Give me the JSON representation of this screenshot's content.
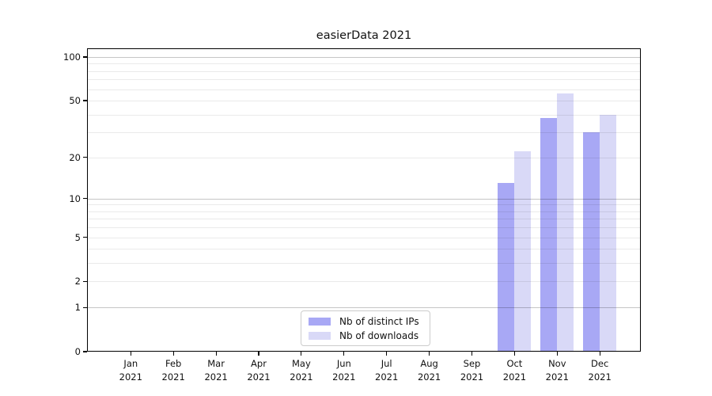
{
  "title": "easierData 2021",
  "chart_data": {
    "type": "bar",
    "title": "easierData 2021",
    "categories": [
      "Jan 2021",
      "Feb 2021",
      "Mar 2021",
      "Apr 2021",
      "May 2021",
      "Jun 2021",
      "Jul 2021",
      "Aug 2021",
      "Sep 2021",
      "Oct 2021",
      "Nov 2021",
      "Dec 2021"
    ],
    "series": [
      {
        "name": "Nb of distinct IPs",
        "color": "#a8a8f5",
        "values": [
          null,
          null,
          null,
          null,
          null,
          null,
          null,
          null,
          null,
          13,
          38,
          30
        ]
      },
      {
        "name": "Nb of downloads",
        "color": "#d9d9f7",
        "values": [
          null,
          null,
          null,
          null,
          null,
          null,
          null,
          null,
          null,
          22,
          56,
          40
        ]
      }
    ],
    "xlabel": "",
    "ylabel": "",
    "y_ticks": [
      0,
      1,
      2,
      5,
      10,
      20,
      50,
      100
    ],
    "yscale": "symlog",
    "ylim": [
      0,
      113
    ],
    "grid": "horizontal-only",
    "legend_position": "lower center"
  },
  "colors": {
    "series_ips": "#a8a8f5",
    "series_downloads": "#d9d9f7",
    "grid_minor": "#ebebeb",
    "grid_major": "#c7c7c7",
    "axis_line": "#000000",
    "background": "#ffffff"
  }
}
